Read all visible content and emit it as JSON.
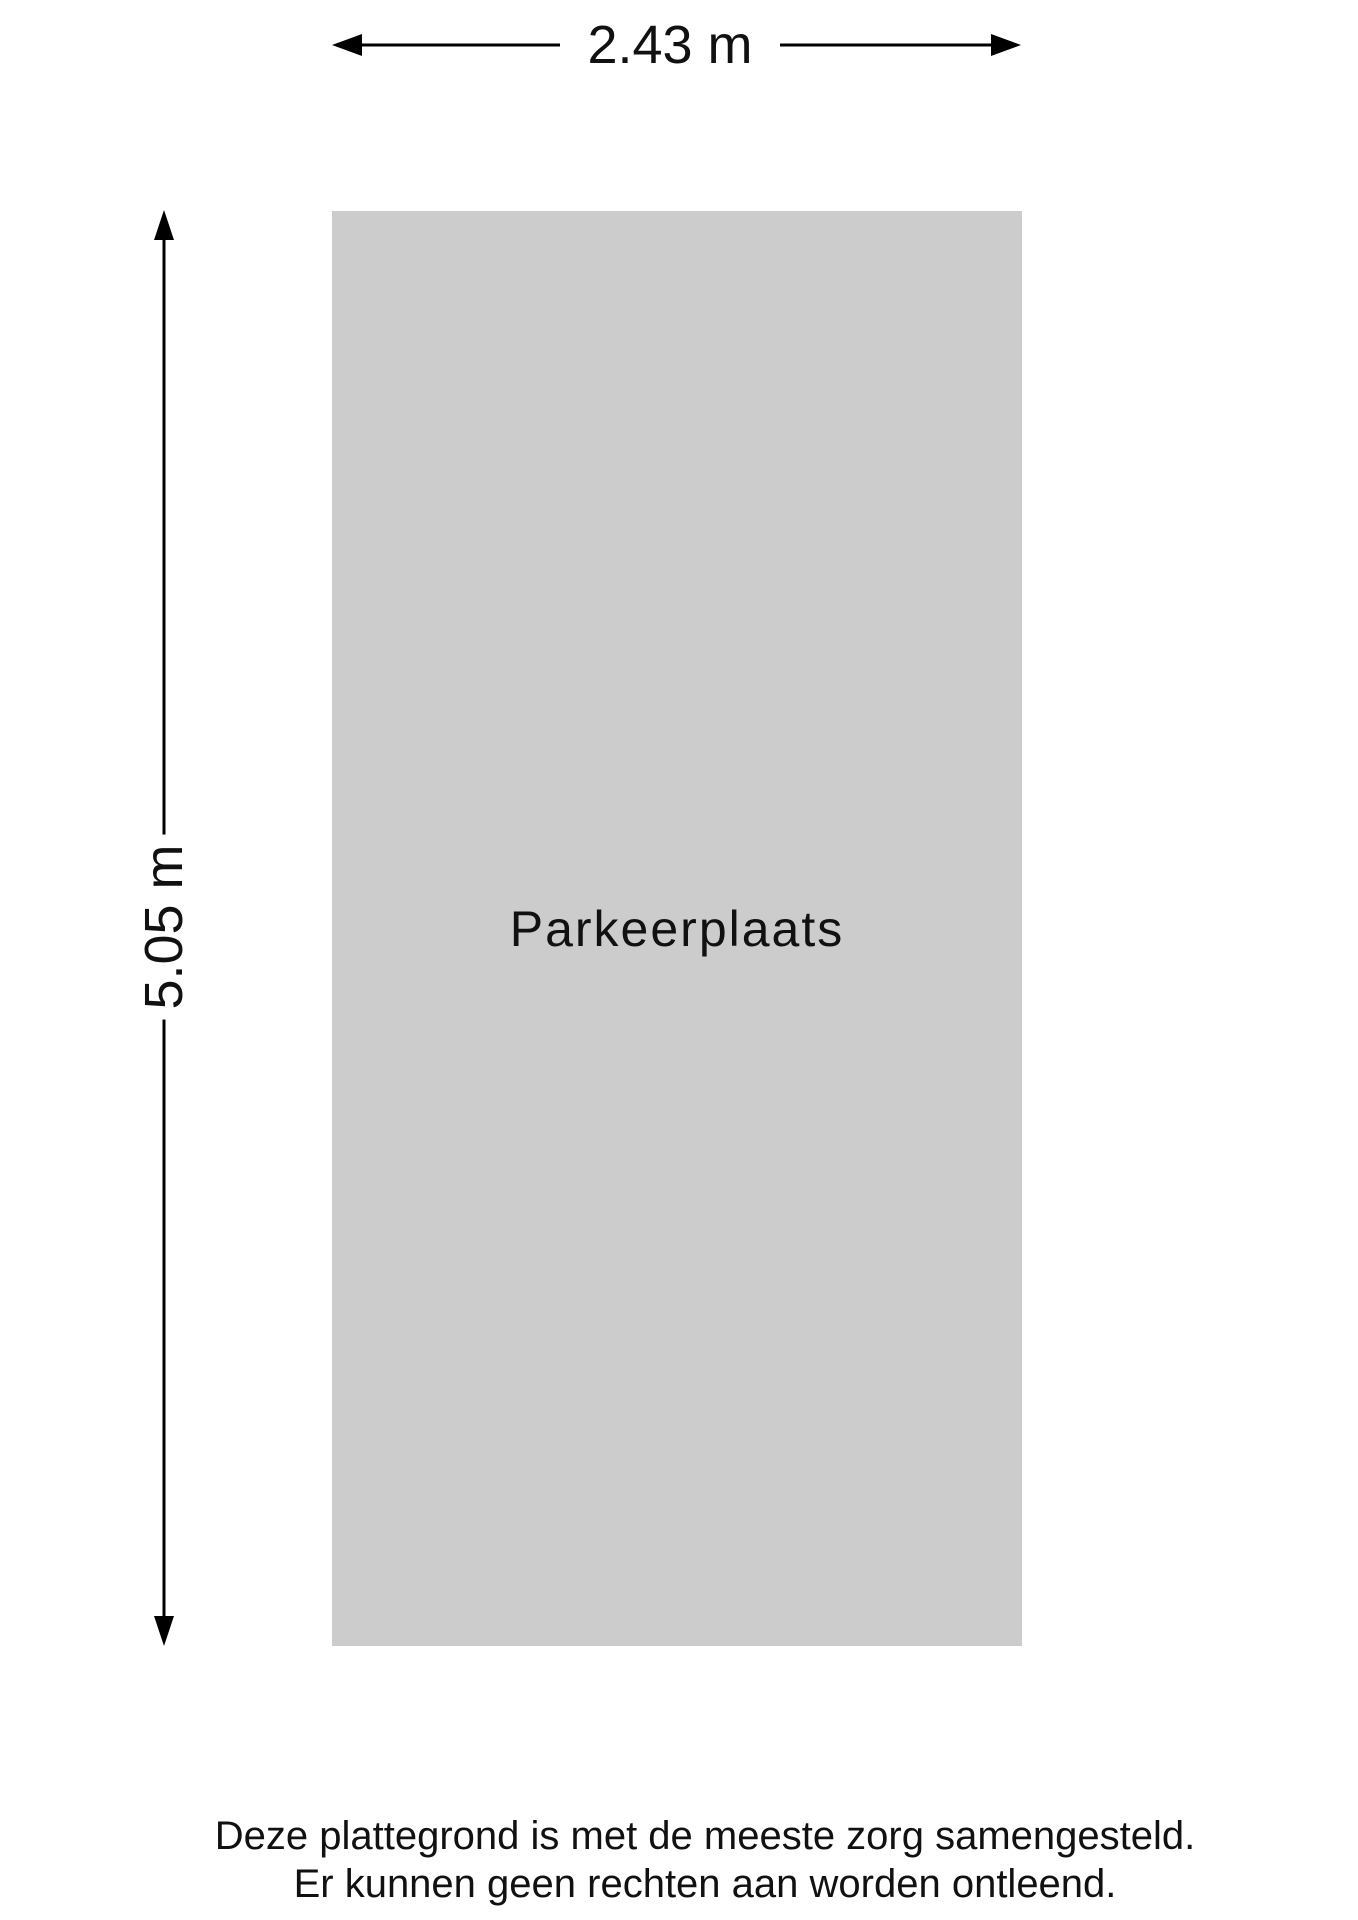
{
  "floorplan": {
    "room": {
      "name": "Parkeerplaats",
      "fill_color": "#cccccc"
    },
    "dimensions": {
      "width": "2.43 m",
      "length": "5.05 m"
    },
    "disclaimer": [
      "Deze plattegrond is met de meeste zorg samengesteld.",
      "Er kunnen geen rechten aan worden ontleend."
    ]
  }
}
